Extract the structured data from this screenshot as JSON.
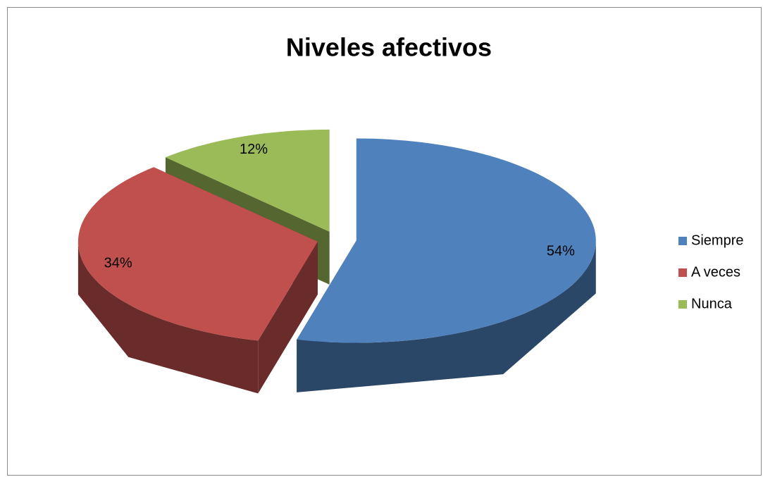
{
  "chart_data": {
    "type": "pie3d",
    "title": "Niveles afectivos",
    "categories": [
      "Siempre",
      "A veces",
      "Nunca"
    ],
    "values": [
      54,
      34,
      12
    ],
    "value_labels": [
      "54%",
      "34%",
      "12%"
    ],
    "colors": [
      "#4f81bd",
      "#c0504d",
      "#9bbb59"
    ],
    "legend": "right"
  }
}
